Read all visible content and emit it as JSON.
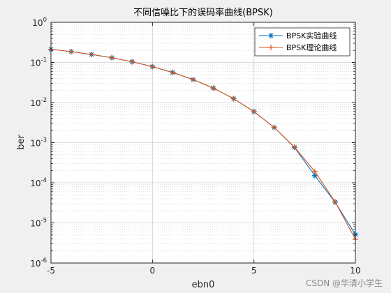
{
  "watermark": "CSDN @华清小学生",
  "chart_data": {
    "type": "line",
    "title": "不同信噪比下的误码率曲线(BPSK)",
    "xlabel": "ebn0",
    "ylabel": "ber",
    "xlim": [
      -5,
      10
    ],
    "ylim": [
      1e-06,
      1
    ],
    "yscale": "log",
    "grid": true,
    "minor_grid": true,
    "legend_position": "top-right",
    "x_ticks": [
      -5,
      0,
      5,
      10
    ],
    "y_tick_exponents": [
      -6,
      -5,
      -4,
      -3,
      -2,
      -1,
      0
    ],
    "x": [
      -5,
      -4,
      -3,
      -2,
      -1,
      0,
      1,
      2,
      3,
      4,
      5,
      6,
      7,
      8,
      9,
      10
    ],
    "series": [
      {
        "name": "BPSK实验曲线",
        "color": "#0072bd",
        "marker": "asterisk",
        "values": [
          0.213,
          0.186,
          0.158,
          0.131,
          0.104,
          0.0786,
          0.0561,
          0.0375,
          0.0229,
          0.0125,
          0.00595,
          0.00239,
          0.00076,
          0.000151,
          3.3e-05,
          5.1e-06
        ]
      },
      {
        "name": "BPSK理论曲线",
        "color": "#d95319",
        "marker": "plus",
        "values": [
          0.213,
          0.186,
          0.158,
          0.131,
          0.104,
          0.0786,
          0.0563,
          0.0375,
          0.0229,
          0.0125,
          0.00595,
          0.00239,
          0.000773,
          0.000191,
          3.36e-05,
          3.9e-06
        ]
      }
    ]
  }
}
